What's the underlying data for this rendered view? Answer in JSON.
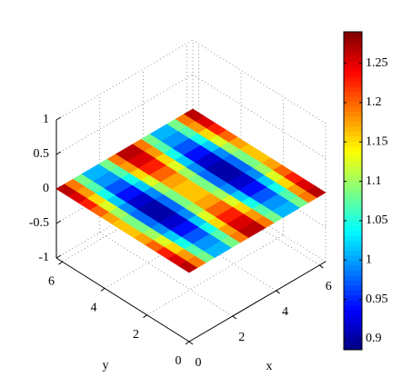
{
  "chart_data": {
    "type": "surface",
    "colormap": "jet",
    "xlabel": "x",
    "ylabel": "y",
    "xlim": [
      0,
      6.28
    ],
    "ylim": [
      0,
      6.28
    ],
    "zlim": [
      -1,
      1
    ],
    "xticks": [
      0,
      2,
      4,
      6
    ],
    "yticks": [
      0,
      2,
      4,
      6
    ],
    "zticks": [
      -1,
      -0.5,
      0,
      0.5,
      1
    ],
    "surface_z": 0,
    "clim": [
      0.886,
      1.29
    ],
    "cticks": [
      0.9,
      0.95,
      1,
      1.05,
      1.1,
      1.15,
      1.2,
      1.25
    ],
    "z": [
      [
        1.267,
        1.192,
        1.084,
        1.009,
        1.009,
        1.084,
        1.192,
        1.267,
        1.267,
        1.192,
        1.084,
        1.009,
        1.009,
        1.084,
        1.192,
        1.267
      ],
      [
        1.253,
        1.178,
        1.07,
        0.995,
        0.995,
        1.07,
        1.178,
        1.253,
        1.253,
        1.178,
        1.07,
        0.995,
        0.995,
        1.07,
        1.178,
        1.253
      ],
      [
        1.228,
        1.153,
        1.045,
        0.97,
        0.97,
        1.045,
        1.153,
        1.228,
        1.228,
        1.153,
        1.045,
        0.97,
        0.97,
        1.045,
        1.153,
        1.228
      ],
      [
        1.2,
        1.125,
        1.017,
        0.942,
        0.942,
        1.017,
        1.125,
        1.2,
        1.2,
        1.125,
        1.017,
        0.942,
        0.942,
        1.017,
        1.125,
        1.2
      ],
      [
        1.175,
        1.1,
        0.992,
        0.917,
        0.917,
        0.992,
        1.1,
        1.175,
        1.175,
        1.1,
        0.992,
        0.917,
        0.917,
        0.992,
        1.1,
        1.175
      ],
      [
        1.161,
        1.086,
        0.978,
        0.903,
        0.903,
        0.978,
        1.086,
        1.161,
        1.161,
        1.086,
        0.978,
        0.903,
        0.903,
        0.978,
        1.086,
        1.161
      ],
      [
        1.161,
        1.086,
        0.978,
        0.903,
        0.903,
        0.978,
        1.086,
        1.161,
        1.161,
        1.086,
        0.978,
        0.903,
        0.903,
        0.978,
        1.086,
        1.161
      ],
      [
        1.175,
        1.1,
        0.992,
        0.917,
        0.917,
        0.992,
        1.1,
        1.175,
        1.175,
        1.1,
        0.992,
        0.917,
        0.917,
        0.992,
        1.1,
        1.175
      ],
      [
        1.2,
        1.125,
        1.017,
        0.942,
        0.942,
        1.017,
        1.125,
        1.2,
        1.2,
        1.125,
        1.017,
        0.942,
        0.942,
        1.017,
        1.125,
        1.2
      ],
      [
        1.228,
        1.153,
        1.045,
        0.97,
        0.97,
        1.045,
        1.153,
        1.228,
        1.228,
        1.153,
        1.045,
        0.97,
        0.97,
        1.045,
        1.153,
        1.228
      ],
      [
        1.253,
        1.178,
        1.07,
        0.995,
        0.995,
        1.07,
        1.178,
        1.253,
        1.253,
        1.178,
        1.07,
        0.995,
        0.995,
        1.07,
        1.178,
        1.253
      ],
      [
        1.267,
        1.192,
        1.084,
        1.009,
        1.009,
        1.084,
        1.192,
        1.267,
        1.267,
        1.192,
        1.084,
        1.009,
        1.009,
        1.084,
        1.192,
        1.267
      ]
    ]
  }
}
